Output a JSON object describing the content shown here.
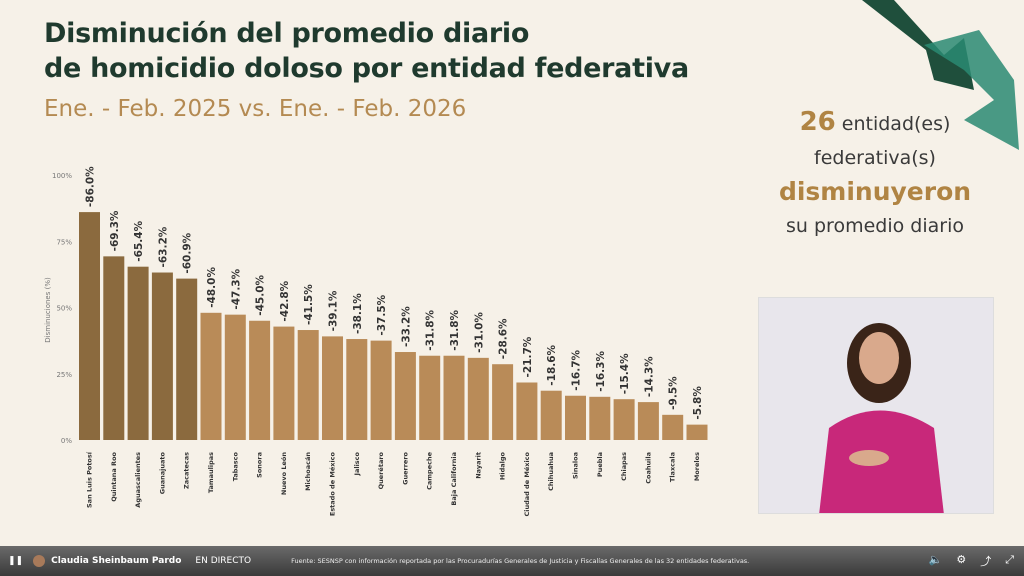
{
  "title_line1": "Disminución del promedio diario",
  "title_line2": "de homicidio doloso por entidad federativa",
  "subtitle": "Ene. - Feb. 2025 vs. Ene. - Feb. 2026",
  "info": {
    "count": "26",
    "line1": " entidad(es)",
    "line2": "federativa(s)",
    "line3": "disminuyeron",
    "line4": "su promedio diario"
  },
  "player": {
    "channel": "Claudia Sheinbaum Pardo",
    "live": "EN DIRECTO",
    "source": "Fuente: SESNSP con información reportada por las Procuradurías Generales de Justicia y Fiscalías Generales de las 32 entidades federativas.",
    "pause": "❚❚",
    "volume": "🔈",
    "settings": "⚙",
    "share": "⤴",
    "fullscreen": "⤢"
  },
  "colors": {
    "dark": "#8b6a3e",
    "light": "#b98b58",
    "accent": "#1f3a2e"
  },
  "chart_data": {
    "type": "bar",
    "title": "Disminución del promedio diario de homicidio doloso por entidad federativa",
    "ylabel": "Disminuciones (%)",
    "ylim": [
      0,
      100
    ],
    "yticks": [
      "0%",
      "25%",
      "50%",
      "75%",
      "100%"
    ],
    "categories": [
      "San Luis Potosí",
      "Quintana Roo",
      "Aguascalientes",
      "Guanajuato",
      "Zacatecas",
      "Tamaulipas",
      "Tabasco",
      "Sonora",
      "Nuevo León",
      "Michoacán",
      "Estado de México",
      "Jalisco",
      "Querétaro",
      "Guerrero",
      "Campeche",
      "Baja California",
      "Nayarit",
      "Hidalgo",
      "Ciudad de México",
      "Chihuahua",
      "Sinaloa",
      "Puebla",
      "Chiapas",
      "Coahuila",
      "Tlaxcala",
      "Morelos"
    ],
    "values": [
      86.0,
      69.3,
      65.4,
      63.2,
      60.9,
      48.0,
      47.3,
      45.0,
      42.8,
      41.5,
      39.1,
      38.1,
      37.5,
      33.2,
      31.8,
      31.8,
      31.0,
      28.6,
      21.7,
      18.6,
      16.7,
      16.3,
      15.4,
      14.3,
      9.5,
      5.8
    ],
    "labels": [
      "-86.0%",
      "-69.3%",
      "-65.4%",
      "-63.2%",
      "-60.9%",
      "-48.0%",
      "-47.3%",
      "-45.0%",
      "-42.8%",
      "-41.5%",
      "-39.1%",
      "-38.1%",
      "-37.5%",
      "-33.2%",
      "-31.8%",
      "-31.8%",
      "-31.0%",
      "-28.6%",
      "-21.7%",
      "-18.6%",
      "-16.7%",
      "-16.3%",
      "-15.4%",
      "-14.3%",
      "-9.5%",
      "-5.8%"
    ],
    "highlight_top": 5
  }
}
